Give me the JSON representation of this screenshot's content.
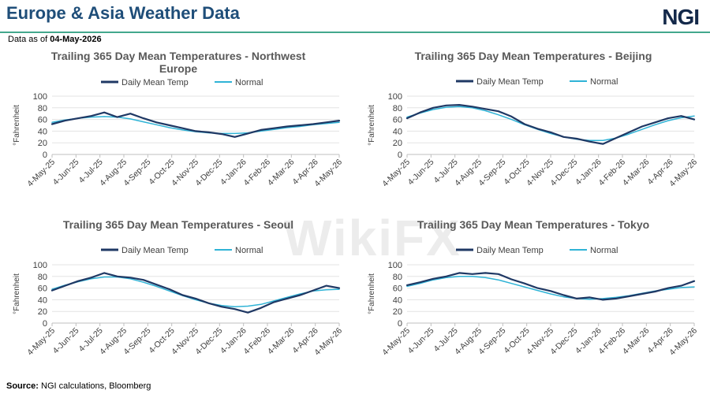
{
  "header": {
    "title": "Europe & Asia Weather Data",
    "logo": "NGI"
  },
  "date_label": "Data as of",
  "date_value": "04-May-2026",
  "source_label": "Source:",
  "source_text": "NGI calculations, Bloomberg",
  "watermark": "WikiFX",
  "colors": {
    "daily": "#1f3864",
    "normal": "#2fb3d6",
    "accent_rule": "#43a88d",
    "title": "#1f4e79"
  },
  "chart_data": [
    {
      "type": "line",
      "title_lines": [
        "Trailing 365 Day Mean Temperatures - Northwest",
        "Europe"
      ],
      "ylabel": "°Fahrenheit",
      "ylim": [
        0,
        100
      ],
      "yticks": [
        0,
        20,
        40,
        60,
        80,
        100
      ],
      "xticks": [
        "4-May-25",
        "4-Jun-25",
        "4-Jul-25",
        "4-Aug-25",
        "4-Sep-25",
        "4-Oct-25",
        "4-Nov-25",
        "4-Dec-25",
        "4-Jan-26",
        "4-Feb-26",
        "4-Mar-26",
        "4-Apr-26",
        "4-May-26"
      ],
      "grid": true,
      "legend": "top",
      "series": [
        {
          "name": "Daily Mean Temp",
          "values": [
            52,
            58,
            62,
            66,
            72,
            64,
            70,
            62,
            55,
            50,
            45,
            40,
            38,
            35,
            30,
            36,
            42,
            45,
            48,
            50,
            52,
            55,
            58
          ]
        },
        {
          "name": "Normal",
          "values": [
            55,
            59,
            62,
            64,
            65,
            64,
            61,
            56,
            51,
            46,
            42,
            39,
            37,
            36,
            36,
            37,
            40,
            43,
            46,
            48,
            51,
            53,
            55
          ]
        }
      ]
    },
    {
      "type": "line",
      "title_lines": [
        "Trailing 365 Day Mean Temperatures - Beijing"
      ],
      "ylabel": "°Fahrenheit",
      "ylim": [
        0,
        100
      ],
      "yticks": [
        0,
        20,
        40,
        60,
        80,
        100
      ],
      "xticks": [
        "4-May-25",
        "4-Jun-25",
        "4-Jul-25",
        "4-Aug-25",
        "4-Sep-25",
        "4-Oct-25",
        "4-Nov-25",
        "4-Dec-25",
        "4-Jan-26",
        "4-Feb-26",
        "4-Mar-26",
        "4-Apr-26",
        "4-May-26"
      ],
      "grid": true,
      "legend": "top",
      "series": [
        {
          "name": "Daily Mean Temp",
          "values": [
            62,
            72,
            80,
            84,
            85,
            82,
            78,
            74,
            65,
            52,
            44,
            38,
            30,
            27,
            22,
            18,
            28,
            38,
            48,
            55,
            62,
            66,
            60
          ]
        },
        {
          "name": "Normal",
          "values": [
            64,
            71,
            77,
            81,
            82,
            80,
            75,
            68,
            60,
            51,
            43,
            36,
            30,
            26,
            24,
            24,
            28,
            35,
            43,
            51,
            58,
            63,
            66
          ]
        }
      ]
    },
    {
      "type": "line",
      "title_lines": [
        "Trailing 365 Day Mean Temperatures - Seoul"
      ],
      "ylabel": "°Fahrenheit",
      "ylim": [
        0,
        100
      ],
      "yticks": [
        0,
        20,
        40,
        60,
        80,
        100
      ],
      "xticks": [
        "4-May-25",
        "4-Jun-25",
        "4-Jul-25",
        "4-Aug-25",
        "4-Sep-25",
        "4-Oct-25",
        "4-Nov-25",
        "4-Dec-25",
        "4-Jan-26",
        "4-Feb-26",
        "4-Mar-26",
        "4-Apr-26",
        "4-May-26"
      ],
      "grid": true,
      "legend": "top",
      "series": [
        {
          "name": "Daily Mean Temp",
          "values": [
            56,
            64,
            72,
            78,
            86,
            80,
            78,
            74,
            66,
            58,
            48,
            42,
            34,
            28,
            24,
            18,
            26,
            36,
            42,
            48,
            56,
            64,
            60
          ]
        },
        {
          "name": "Normal",
          "values": [
            58,
            65,
            71,
            76,
            79,
            79,
            76,
            70,
            63,
            55,
            47,
            40,
            34,
            30,
            28,
            29,
            32,
            38,
            44,
            50,
            55,
            57,
            58
          ]
        }
      ]
    },
    {
      "type": "line",
      "title_lines": [
        "Trailing 365 Day Mean Temperatures - Tokyo"
      ],
      "ylabel": "°Fahrenheit",
      "ylim": [
        0,
        100
      ],
      "yticks": [
        0,
        20,
        40,
        60,
        80,
        100
      ],
      "xticks": [
        "4-May-25",
        "4-Jun-25",
        "4-Jul-25",
        "4-Aug-25",
        "4-Sep-25",
        "4-Oct-25",
        "4-Nov-25",
        "4-Dec-25",
        "4-Jan-26",
        "4-Feb-26",
        "4-Mar-26",
        "4-Apr-26",
        "4-May-26"
      ],
      "grid": true,
      "legend": "top",
      "series": [
        {
          "name": "Daily Mean Temp",
          "values": [
            65,
            70,
            76,
            80,
            86,
            84,
            86,
            84,
            75,
            68,
            60,
            55,
            48,
            42,
            44,
            40,
            42,
            46,
            50,
            54,
            60,
            64,
            72
          ]
        },
        {
          "name": "Normal",
          "values": [
            63,
            68,
            74,
            78,
            80,
            80,
            78,
            74,
            68,
            62,
            56,
            50,
            45,
            42,
            41,
            42,
            44,
            47,
            51,
            55,
            58,
            61,
            62
          ]
        }
      ]
    }
  ]
}
